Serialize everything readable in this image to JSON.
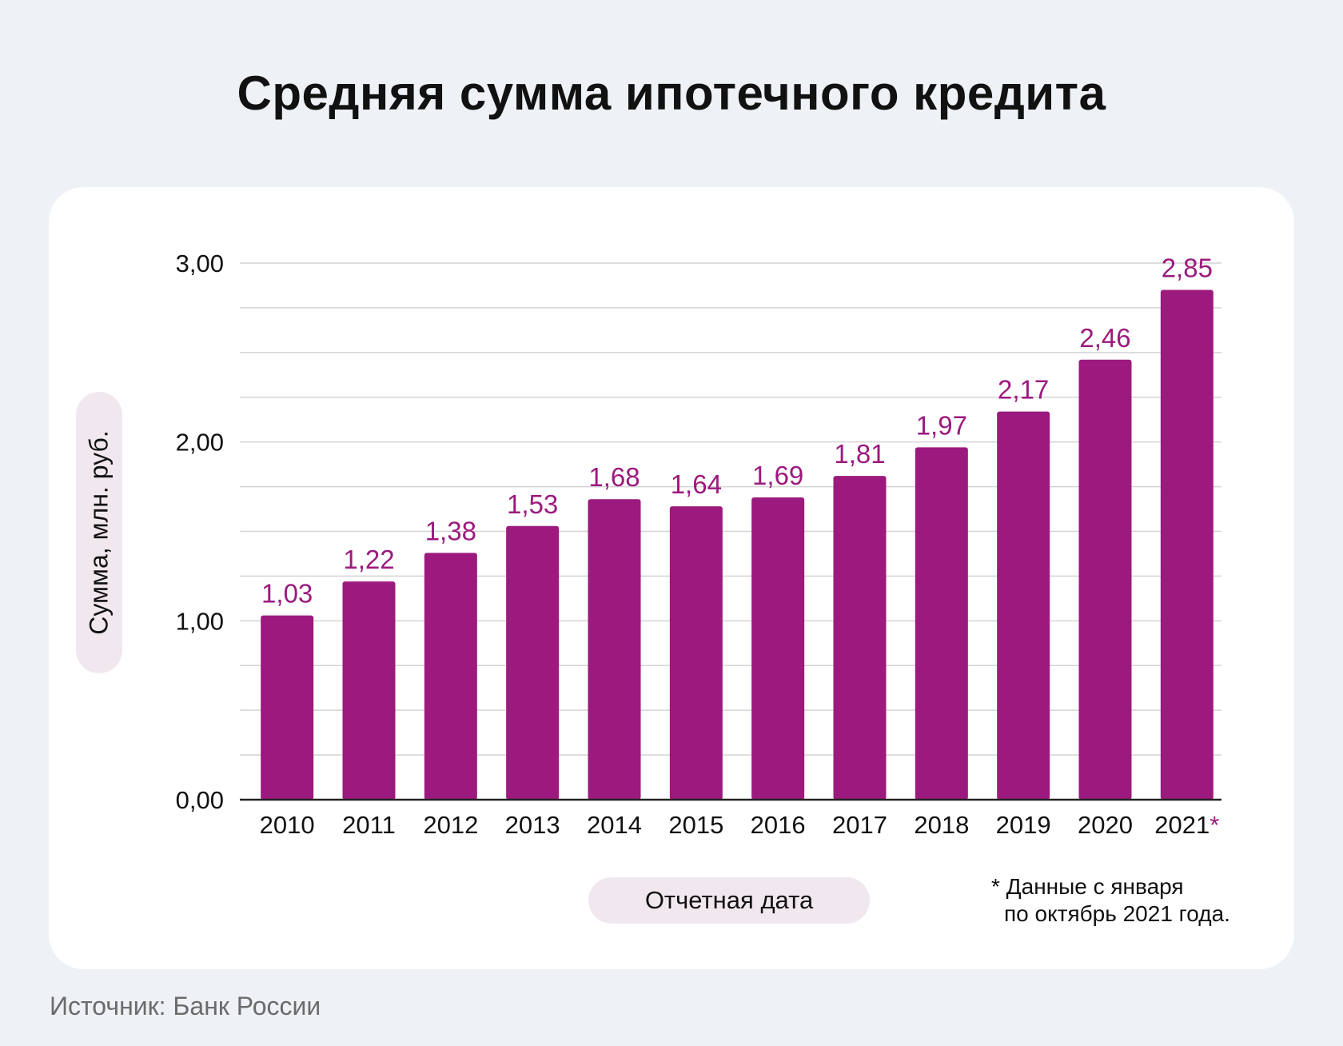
{
  "title": "Средняя сумма ипотечного кредита",
  "chart_data": {
    "type": "bar",
    "title": "Средняя сумма ипотечного кредита",
    "ylabel": "Сумма, млн. руб.",
    "xlabel": "Отчетная дата",
    "ylim": [
      0,
      3
    ],
    "yticks": [
      "0,00",
      "1,00",
      "2,00",
      "3,00"
    ],
    "categories": [
      "2010",
      "2011",
      "2012",
      "2013",
      "2014",
      "2015",
      "2016",
      "2017",
      "2018",
      "2019",
      "2020",
      "2021"
    ],
    "values": [
      1.03,
      1.22,
      1.38,
      1.53,
      1.68,
      1.64,
      1.69,
      1.81,
      1.97,
      2.17,
      2.46,
      2.85
    ],
    "value_labels": [
      "1,03",
      "1,22",
      "1,38",
      "1,53",
      "1,68",
      "1,64",
      "1,69",
      "1,81",
      "1,97",
      "2,17",
      "2,46",
      "2,85"
    ],
    "last_category_marker": "*",
    "grid": true,
    "bar_color": "#9c1a7e",
    "label_color": "#9c1a7e"
  },
  "footnote": {
    "line1": "* Данные с января",
    "line2": "по октябрь 2021 года."
  },
  "source": "Источник: Банк России"
}
